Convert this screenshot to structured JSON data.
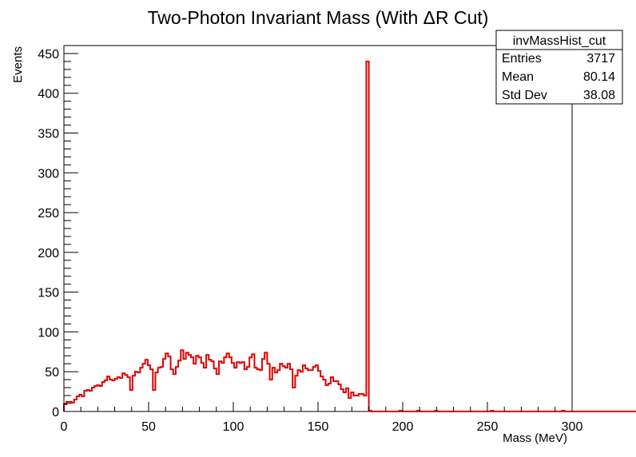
{
  "chart_data": {
    "type": "bar",
    "title": "Two-Photon Invariant Mass (With   ΔR Cut)",
    "xlabel": "Mass (MeV)",
    "ylabel": "Events",
    "xlim": [
      0,
      300
    ],
    "ylim": [
      0,
      460
    ],
    "xticks": [
      "0",
      "50",
      "100",
      "150",
      "200",
      "250",
      "300"
    ],
    "yticks": [
      "0",
      "50",
      "100",
      "150",
      "200",
      "250",
      "300",
      "350",
      "400",
      "450"
    ],
    "bin_width": 1.5,
    "color": "#e00000",
    "grid": false,
    "legend_position": "top-right",
    "values": [
      9,
      12,
      12,
      11,
      15,
      19,
      21,
      19,
      26,
      27,
      26,
      30,
      32,
      33,
      32,
      37,
      39,
      44,
      40,
      39,
      41,
      43,
      42,
      48,
      46,
      43,
      27,
      45,
      50,
      49,
      55,
      60,
      65,
      58,
      53,
      27,
      49,
      55,
      56,
      66,
      73,
      69,
      53,
      47,
      56,
      64,
      77,
      66,
      74,
      71,
      68,
      60,
      70,
      68,
      61,
      55,
      71,
      65,
      63,
      54,
      47,
      63,
      61,
      68,
      73,
      68,
      61,
      55,
      62,
      61,
      62,
      53,
      56,
      68,
      72,
      55,
      53,
      52,
      66,
      74,
      60,
      40,
      55,
      49,
      52,
      60,
      57,
      55,
      60,
      53,
      30,
      45,
      52,
      50,
      58,
      54,
      52,
      52,
      56,
      58,
      51,
      44,
      40,
      33,
      35,
      43,
      38,
      38,
      34,
      28,
      24,
      29,
      17,
      24,
      20,
      20,
      22,
      22,
      20,
      440,
      1,
      0,
      0,
      0,
      0,
      0,
      0,
      0,
      0,
      0,
      0,
      0,
      1,
      0,
      0,
      0,
      0,
      0,
      0,
      1,
      0,
      0,
      0,
      0,
      0,
      0,
      1,
      0,
      0,
      0,
      0,
      0,
      0,
      0,
      0,
      0,
      0,
      0,
      0,
      0,
      0,
      0,
      0,
      0,
      0,
      0,
      0,
      0,
      1,
      0,
      0,
      0,
      0,
      0,
      0,
      0,
      0,
      0,
      0,
      0,
      0,
      0,
      0,
      0,
      0,
      0,
      0,
      0,
      0,
      0,
      0,
      0,
      0,
      0,
      0,
      0,
      1,
      0,
      0,
      0,
      0,
      0,
      0,
      0,
      0,
      0,
      0,
      0,
      0,
      0,
      0,
      0,
      0,
      0,
      0,
      0,
      0,
      0,
      0,
      0,
      0,
      0,
      0,
      0,
      0,
      0,
      0,
      0,
      0,
      0,
      0,
      0,
      0,
      0,
      0,
      0,
      0,
      0,
      0,
      0,
      0,
      0,
      0,
      0,
      0,
      0,
      0,
      0,
      0,
      0,
      0,
      0,
      0,
      0,
      0,
      0,
      0,
      0,
      0,
      0,
      1,
      0,
      0,
      0,
      0,
      0,
      0,
      0,
      0,
      0,
      0,
      0,
      0,
      0,
      0,
      0,
      0,
      0,
      0,
      0,
      0
    ]
  },
  "stats_box": {
    "name": "invMassHist_cut",
    "rows": [
      {
        "label": "Entries",
        "value": "3717"
      },
      {
        "label": "Mean",
        "value": "80.14"
      },
      {
        "label": "Std Dev",
        "value": "38.08"
      }
    ]
  }
}
